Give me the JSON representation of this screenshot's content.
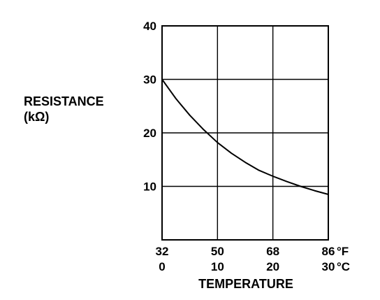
{
  "chart_data": {
    "type": "line",
    "title": "",
    "ylabel": "RESISTANCE",
    "ylabel_unit": "(kΩ)",
    "xlabel": "TEMPERATURE",
    "xlim": [
      0,
      30
    ],
    "ylim": [
      0,
      40
    ],
    "grid": true,
    "y_ticks": [
      "10",
      "20",
      "30",
      "40"
    ],
    "x_ticks_f": [
      "32",
      "50",
      "68",
      "86"
    ],
    "x_ticks_c": [
      "0",
      "10",
      "20",
      "30"
    ],
    "x_unit_f": "°F",
    "x_unit_c": "°C",
    "series": [
      {
        "x": [
          0,
          2.5,
          5,
          7.5,
          10,
          12.5,
          15,
          17.5,
          20,
          22.5,
          25,
          27.5,
          30
        ],
        "values": [
          30,
          26.4,
          23.3,
          20.6,
          18.2,
          16.2,
          14.5,
          13.0,
          11.9,
          10.9,
          10.0,
          9.2,
          8.5
        ]
      }
    ]
  }
}
